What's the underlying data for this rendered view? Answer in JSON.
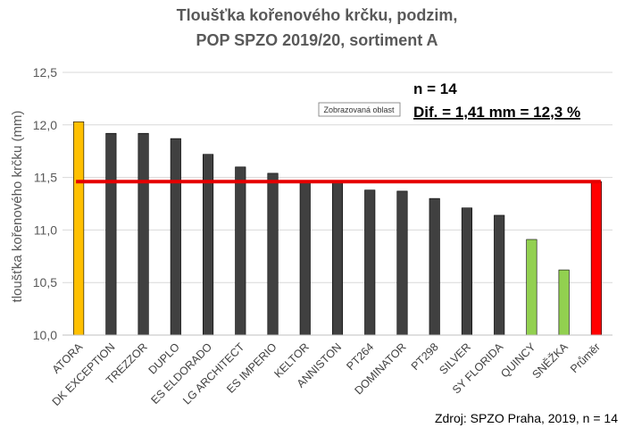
{
  "chart_data": {
    "type": "bar",
    "title": [
      "Tloušťka kořenového krčku, podzim,",
      "POP SPZO 2019/20, sortiment A"
    ],
    "ylabel": "tloušťka kořenového krčku (mm)",
    "xlabel": "",
    "ylim": [
      10.0,
      12.5
    ],
    "yticks": [
      "10,0",
      "10,5",
      "11,0",
      "11,5",
      "12,0",
      "12,5"
    ],
    "ytick_values": [
      10.0,
      10.5,
      11.0,
      11.5,
      12.0,
      12.5
    ],
    "grid": true,
    "categories": [
      "ATORA",
      "DK EXCEPTION",
      "TREZZOR",
      "DUPLO",
      "ES ELDORADO",
      "LG ARCHITECT",
      "ES IMPERIO",
      "KELTOR",
      "ANNISTON",
      "PT264",
      "DOMINATOR",
      "PT298",
      "SILVER",
      "SY FLORIDA",
      "QUINCY",
      "SNĚŽKA",
      "Průměr"
    ],
    "values": [
      12.03,
      11.92,
      11.92,
      11.87,
      11.72,
      11.6,
      11.54,
      11.46,
      11.46,
      11.38,
      11.37,
      11.3,
      11.21,
      11.14,
      10.91,
      10.62,
      11.46
    ],
    "bar_colors": [
      "#ffc000",
      "#404040",
      "#404040",
      "#404040",
      "#404040",
      "#404040",
      "#404040",
      "#404040",
      "#404040",
      "#404040",
      "#404040",
      "#404040",
      "#404040",
      "#404040",
      "#92d050",
      "#92d050",
      "#ff0000"
    ],
    "average_line": {
      "value": 11.46,
      "color": "#e60000"
    },
    "annotations": [
      "n = 14",
      "Dif. = 1,41 mm = 12,3 %"
    ],
    "tooltip": "Zobrazovaná oblast",
    "source": "Zdroj: SPZO Praha, 2019, n = 14"
  }
}
